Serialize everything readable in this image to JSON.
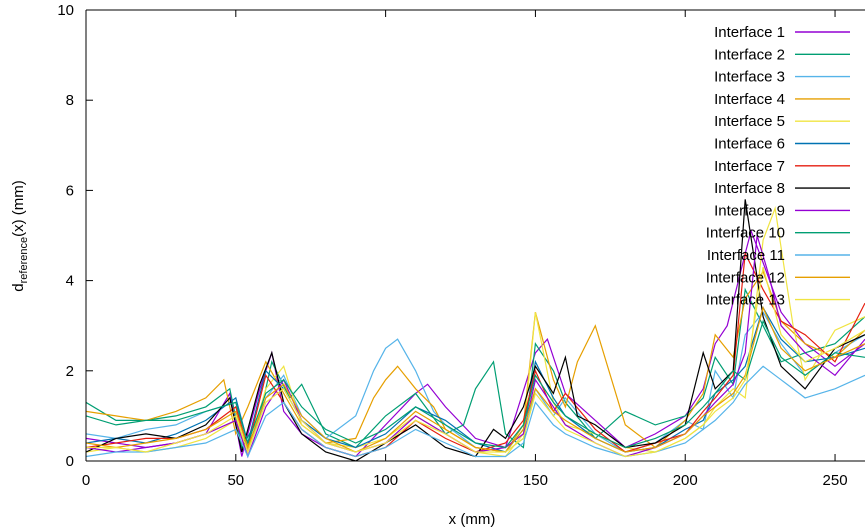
{
  "chart_data": {
    "type": "line",
    "xlabel": "x (mm)",
    "ylabel_main": "d",
    "ylabel_sub": "reference",
    "ylabel_tail": "(x) (mm)",
    "xlim": [
      0,
      260
    ],
    "ylim": [
      0,
      10
    ],
    "xticks": [
      0,
      50,
      100,
      150,
      200,
      250
    ],
    "yticks": [
      0,
      2,
      4,
      6,
      8,
      10
    ],
    "grid": false,
    "legend_position": "top-right",
    "series": [
      {
        "name": "Interface 1",
        "color": "#9400d3",
        "x": [
          0,
          10,
          20,
          30,
          40,
          48,
          52,
          58,
          62,
          66,
          72,
          80,
          90,
          100,
          110,
          114,
          120,
          130,
          140,
          150,
          154,
          160,
          170,
          180,
          190,
          200,
          206,
          210,
          214,
          220,
          222,
          226,
          232,
          240,
          250,
          260
        ],
        "y": [
          0.5,
          0.4,
          0.3,
          0.4,
          0.6,
          1.5,
          0.1,
          1.6,
          2.4,
          1.1,
          0.6,
          0.3,
          0.1,
          0.8,
          1.5,
          1.7,
          1.2,
          0.5,
          0.3,
          2.4,
          2.7,
          1.5,
          0.9,
          0.3,
          0.6,
          1.0,
          1.6,
          2.6,
          3.0,
          4.6,
          5.1,
          4.4,
          3.3,
          2.6,
          2.1,
          2.6
        ]
      },
      {
        "name": "Interface 2",
        "color": "#009e73",
        "x": [
          0,
          10,
          20,
          30,
          40,
          48,
          52,
          58,
          62,
          68,
          72,
          80,
          90,
          100,
          110,
          120,
          126,
          130,
          136,
          140,
          146,
          150,
          156,
          160,
          170,
          180,
          190,
          200,
          206,
          210,
          216,
          220,
          226,
          232,
          240,
          250,
          260
        ],
        "y": [
          1.3,
          0.9,
          0.9,
          1.0,
          1.2,
          1.6,
          0.3,
          1.0,
          2.2,
          1.4,
          1.7,
          0.6,
          0.3,
          1.0,
          1.5,
          0.6,
          0.8,
          1.6,
          2.2,
          0.6,
          0.3,
          2.6,
          2.0,
          1.3,
          0.5,
          1.1,
          0.8,
          1.0,
          1.4,
          2.3,
          1.7,
          3.8,
          3.0,
          2.2,
          2.4,
          2.6,
          3.2
        ]
      },
      {
        "name": "Interface 3",
        "color": "#56b4e9",
        "x": [
          0,
          10,
          20,
          30,
          40,
          50,
          54,
          60,
          66,
          72,
          80,
          90,
          96,
          100,
          104,
          110,
          116,
          120,
          130,
          140,
          146,
          150,
          156,
          160,
          170,
          180,
          190,
          200,
          206,
          210,
          216,
          220,
          226,
          232,
          240,
          250,
          260
        ],
        "y": [
          0.6,
          0.5,
          0.7,
          0.8,
          1.1,
          1.3,
          0.2,
          1.4,
          1.9,
          1.0,
          0.5,
          1.0,
          2.0,
          2.5,
          2.7,
          2.0,
          1.1,
          0.8,
          0.3,
          0.2,
          0.5,
          1.6,
          1.0,
          1.4,
          0.6,
          0.2,
          0.4,
          0.9,
          0.7,
          2.0,
          1.4,
          2.8,
          3.3,
          2.6,
          1.9,
          2.4,
          2.8
        ]
      },
      {
        "name": "Interface 4",
        "color": "#e69f00",
        "x": [
          0,
          10,
          20,
          30,
          40,
          46,
          50,
          54,
          60,
          66,
          72,
          80,
          90,
          96,
          100,
          104,
          110,
          116,
          120,
          130,
          140,
          146,
          150,
          156,
          160,
          164,
          170,
          180,
          190,
          200,
          206,
          210,
          216,
          220,
          226,
          232,
          240,
          250,
          260
        ],
        "y": [
          1.1,
          1.0,
          0.9,
          1.1,
          1.4,
          1.8,
          0.6,
          1.2,
          2.2,
          1.5,
          0.8,
          0.4,
          0.5,
          1.4,
          1.8,
          2.1,
          1.6,
          1.2,
          0.7,
          0.3,
          0.2,
          0.8,
          3.3,
          1.8,
          1.2,
          2.2,
          3.0,
          0.8,
          0.3,
          0.9,
          1.5,
          2.8,
          2.3,
          3.6,
          4.2,
          3.1,
          2.6,
          2.3,
          2.9
        ]
      },
      {
        "name": "Interface 5",
        "color": "#f0e442",
        "x": [
          0,
          10,
          20,
          30,
          40,
          50,
          54,
          60,
          66,
          72,
          80,
          90,
          100,
          110,
          120,
          130,
          140,
          146,
          150,
          156,
          160,
          170,
          180,
          190,
          200,
          206,
          210,
          216,
          220,
          226,
          230,
          236,
          240,
          250,
          260
        ],
        "y": [
          0.2,
          0.3,
          0.2,
          0.3,
          0.5,
          0.9,
          0.2,
          1.6,
          2.1,
          0.8,
          0.4,
          0.3,
          0.5,
          1.0,
          0.6,
          0.2,
          0.1,
          0.6,
          3.3,
          1.3,
          0.8,
          0.6,
          0.3,
          0.2,
          0.5,
          0.8,
          1.2,
          1.6,
          1.4,
          4.9,
          5.6,
          3.0,
          1.8,
          2.9,
          3.2
        ]
      },
      {
        "name": "Interface 6",
        "color": "#0072b2",
        "x": [
          0,
          10,
          20,
          30,
          40,
          50,
          54,
          60,
          66,
          72,
          80,
          90,
          100,
          110,
          120,
          130,
          140,
          146,
          150,
          156,
          160,
          170,
          180,
          190,
          200,
          206,
          210,
          216,
          220,
          226,
          232,
          240,
          250,
          260
        ],
        "y": [
          0.4,
          0.5,
          0.4,
          0.6,
          0.9,
          1.4,
          0.4,
          2.0,
          1.6,
          0.9,
          0.5,
          0.3,
          0.6,
          1.2,
          0.9,
          0.4,
          0.2,
          0.7,
          2.2,
          1.4,
          1.0,
          0.5,
          0.2,
          0.3,
          0.7,
          0.9,
          1.5,
          1.8,
          2.1,
          3.4,
          2.7,
          2.2,
          2.3,
          2.5
        ]
      },
      {
        "name": "Interface 7",
        "color": "#e51e10",
        "x": [
          0,
          10,
          20,
          30,
          40,
          50,
          54,
          60,
          66,
          72,
          80,
          90,
          100,
          110,
          120,
          130,
          140,
          146,
          150,
          156,
          160,
          170,
          180,
          190,
          200,
          206,
          210,
          216,
          220,
          226,
          232,
          240,
          250,
          260
        ],
        "y": [
          0.3,
          0.4,
          0.5,
          0.5,
          0.7,
          1.2,
          0.3,
          1.9,
          1.3,
          0.7,
          0.3,
          0.1,
          0.3,
          0.9,
          0.5,
          0.2,
          0.4,
          0.9,
          2.0,
          1.1,
          1.5,
          0.7,
          0.2,
          0.4,
          0.6,
          1.1,
          1.4,
          1.9,
          4.6,
          3.8,
          3.1,
          2.8,
          2.2,
          3.5
        ]
      },
      {
        "name": "Interface 8",
        "color": "#000000",
        "x": [
          0,
          10,
          20,
          30,
          40,
          48,
          52,
          58,
          62,
          66,
          72,
          80,
          90,
          100,
          110,
          120,
          130,
          136,
          140,
          146,
          150,
          156,
          160,
          164,
          170,
          180,
          190,
          200,
          206,
          210,
          216,
          220,
          226,
          232,
          240,
          250,
          260
        ],
        "y": [
          0.2,
          0.5,
          0.6,
          0.5,
          0.8,
          1.4,
          0.2,
          1.7,
          2.4,
          1.3,
          0.6,
          0.2,
          0.0,
          0.4,
          0.8,
          0.3,
          0.1,
          0.7,
          0.5,
          1.2,
          2.1,
          1.5,
          2.3,
          1.0,
          0.8,
          0.3,
          0.4,
          0.8,
          2.4,
          1.6,
          2.0,
          5.8,
          3.2,
          2.1,
          1.6,
          2.5,
          2.8
        ]
      },
      {
        "name": "Interface 9",
        "color": "#9400d3",
        "x": [
          0,
          10,
          20,
          30,
          40,
          50,
          54,
          60,
          66,
          72,
          80,
          90,
          100,
          110,
          120,
          130,
          140,
          146,
          150,
          156,
          160,
          170,
          180,
          190,
          200,
          206,
          210,
          216,
          220,
          224,
          228,
          232,
          240,
          250,
          260
        ],
        "y": [
          0.3,
          0.2,
          0.3,
          0.4,
          0.6,
          0.9,
          0.1,
          1.2,
          1.8,
          0.9,
          0.4,
          0.2,
          0.4,
          1.0,
          0.6,
          0.2,
          0.3,
          0.6,
          1.8,
          1.2,
          0.8,
          0.4,
          0.1,
          0.3,
          0.6,
          1.0,
          1.3,
          1.7,
          2.4,
          5.0,
          4.1,
          3.0,
          2.4,
          1.9,
          2.7
        ]
      },
      {
        "name": "Interface 10",
        "color": "#009e73",
        "x": [
          0,
          10,
          20,
          30,
          40,
          50,
          54,
          60,
          66,
          72,
          80,
          90,
          100,
          110,
          120,
          130,
          140,
          146,
          150,
          156,
          160,
          170,
          180,
          190,
          200,
          206,
          210,
          216,
          220,
          226,
          232,
          240,
          250,
          260
        ],
        "y": [
          1.0,
          0.8,
          0.9,
          0.9,
          1.1,
          1.3,
          0.4,
          1.5,
          1.8,
          1.2,
          0.7,
          0.4,
          0.7,
          1.2,
          0.8,
          0.4,
          0.3,
          0.8,
          1.9,
          1.3,
          1.0,
          0.6,
          0.3,
          0.5,
          0.8,
          1.2,
          1.5,
          2.0,
          1.8,
          3.1,
          2.3,
          1.9,
          2.4,
          2.3
        ]
      },
      {
        "name": "Interface 11",
        "color": "#56b4e9",
        "x": [
          0,
          10,
          20,
          30,
          40,
          50,
          54,
          60,
          66,
          72,
          80,
          90,
          100,
          110,
          120,
          130,
          140,
          146,
          150,
          156,
          160,
          170,
          180,
          190,
          200,
          206,
          210,
          216,
          220,
          226,
          232,
          240,
          250,
          260
        ],
        "y": [
          0.1,
          0.2,
          0.2,
          0.3,
          0.4,
          0.7,
          0.1,
          1.0,
          1.3,
          0.7,
          0.3,
          0.1,
          0.3,
          0.7,
          0.4,
          0.1,
          0.1,
          0.4,
          1.3,
          0.8,
          0.6,
          0.3,
          0.1,
          0.2,
          0.4,
          0.7,
          0.9,
          1.3,
          1.7,
          2.1,
          1.8,
          1.4,
          1.6,
          1.9
        ]
      },
      {
        "name": "Interface 12",
        "color": "#e69f00",
        "x": [
          0,
          10,
          20,
          30,
          40,
          50,
          54,
          60,
          66,
          72,
          80,
          90,
          100,
          110,
          120,
          130,
          140,
          146,
          150,
          156,
          160,
          170,
          180,
          190,
          200,
          206,
          210,
          216,
          220,
          226,
          232,
          240,
          250,
          260
        ],
        "y": [
          0.4,
          0.3,
          0.4,
          0.5,
          0.7,
          1.1,
          0.3,
          1.4,
          1.7,
          1.0,
          0.5,
          0.2,
          0.5,
          1.1,
          0.7,
          0.3,
          0.2,
          0.7,
          1.6,
          1.1,
          0.9,
          0.5,
          0.2,
          0.3,
          0.6,
          1.0,
          1.2,
          1.5,
          1.9,
          3.4,
          2.5,
          2.0,
          2.3,
          2.6
        ]
      },
      {
        "name": "Interface 13",
        "color": "#f0e442",
        "x": [
          0,
          10,
          20,
          30,
          40,
          50,
          54,
          60,
          66,
          72,
          80,
          90,
          100,
          110,
          120,
          130,
          140,
          146,
          150,
          156,
          160,
          170,
          180,
          190,
          200,
          206,
          210,
          216,
          220,
          226,
          232,
          240,
          250,
          260
        ],
        "y": [
          0.3,
          0.3,
          0.2,
          0.4,
          0.6,
          1.0,
          0.2,
          1.3,
          1.6,
          0.9,
          0.4,
          0.2,
          0.4,
          0.9,
          0.6,
          0.2,
          0.2,
          0.5,
          1.5,
          1.0,
          0.7,
          0.4,
          0.1,
          0.2,
          0.5,
          0.8,
          1.1,
          1.4,
          1.8,
          4.3,
          2.8,
          2.2,
          2.5,
          2.9
        ]
      }
    ]
  }
}
